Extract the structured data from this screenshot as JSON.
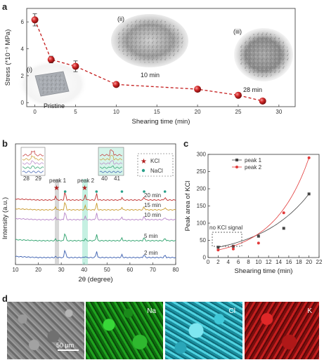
{
  "panels": {
    "a": "a",
    "b": "b",
    "c": "c",
    "d": "d"
  },
  "chart_data": [
    {
      "type": "line",
      "xlabel": "Shearing time (min)",
      "ylabel": "Stress (*10⁻³ MPa)",
      "xlim": [
        -1,
        32
      ],
      "ylim": [
        -0.3,
        7
      ],
      "xticks": [
        "0",
        "5",
        "10",
        "15",
        "20",
        "25",
        "30"
      ],
      "yticks": [
        "0",
        "2",
        "4",
        "6"
      ],
      "x": [
        0,
        2,
        5,
        10,
        20,
        25,
        28
      ],
      "y": [
        6.15,
        3.2,
        2.7,
        1.35,
        1.0,
        0.55,
        0.12
      ],
      "yerr": [
        0.45,
        0.25,
        0.4,
        0.12,
        0.1,
        0.08,
        0.05
      ],
      "annotations": [
        {
          "roman": "(i)",
          "caption": "Pristine"
        },
        {
          "roman": "(ii)",
          "caption": "10 min"
        },
        {
          "roman": "(iii)",
          "caption": "28 min"
        }
      ],
      "style": {
        "marker_color": "#c41c1c",
        "line_style": "dashed"
      }
    },
    {
      "type": "line",
      "xlabel": "2θ (degree)",
      "ylabel": "Intensity (a.u.)",
      "xlim": [
        10,
        80
      ],
      "xticks": [
        "10",
        "20",
        "30",
        "40",
        "50",
        "60",
        "70",
        "80"
      ],
      "series": [
        {
          "name": "2 min",
          "color": "#3b5fb0"
        },
        {
          "name": "5 min",
          "color": "#2aa06a"
        },
        {
          "name": "10 min",
          "color": "#b784c7"
        },
        {
          "name": "15 min",
          "color": "#c99a2e"
        },
        {
          "name": "20 min",
          "color": "#c03030"
        }
      ],
      "legend": [
        {
          "label": "KCl"
        },
        {
          "label": "NaCl"
        }
      ],
      "peaks": [
        "peak 1",
        "peak 2"
      ],
      "inset1_ticks": [
        "28",
        "29"
      ],
      "inset2_ticks": [
        "40",
        "41"
      ]
    },
    {
      "type": "line",
      "xlabel": "Shearing time (min)",
      "ylabel": "Peak area of KCl",
      "xlim": [
        0,
        22
      ],
      "ylim": [
        0,
        300
      ],
      "xticks": [
        "0",
        "2",
        "4",
        "6",
        "8",
        "10",
        "12",
        "14",
        "16",
        "18",
        "20",
        "22"
      ],
      "yticks": [
        "0",
        "50",
        "100",
        "150",
        "200",
        "250",
        "300"
      ],
      "series": [
        {
          "name": "peak 1",
          "color": "#444444",
          "x": [
            2,
            5,
            10,
            15,
            20
          ],
          "y": [
            30,
            33,
            62,
            85,
            185
          ]
        },
        {
          "name": "peak 2",
          "color": "#e23a3a",
          "x": [
            2,
            5,
            10,
            15,
            20
          ],
          "y": [
            22,
            25,
            42,
            130,
            290
          ]
        }
      ],
      "annotation": "no KCl signal",
      "legend_position": "top-left"
    }
  ],
  "eds": {
    "maps": [
      "",
      "Na",
      "Cl",
      "K"
    ],
    "scale_bar": "50 μm"
  }
}
